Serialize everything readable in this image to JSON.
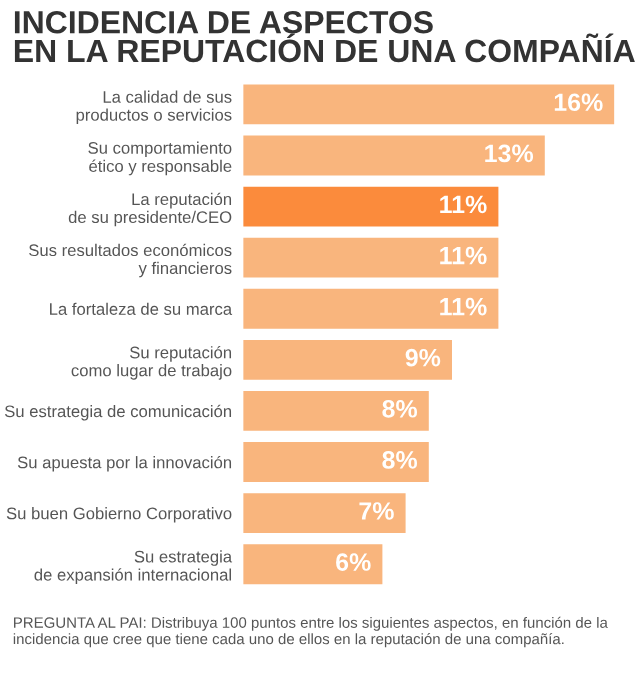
{
  "chart_data": {
    "type": "bar",
    "orientation": "horizontal",
    "title": "INCIDENCIA DE ASPECTOS\nEN LA REPUTACIÓN DE UNA COMPAÑÍA",
    "categories": [
      "La calidad de sus\nproductos o servicios",
      "Su comportamiento\nético y responsable",
      "La reputación\nde su presidente/CEO",
      "Sus resultados económicos\ny financieros",
      "La fortaleza de su marca",
      "Su reputación\ncomo lugar de trabajo",
      "Su estrategia de comunicación",
      "Su apuesta por la innovación",
      "Su buen Gobierno Corporativo",
      "Su estrategia\nde expansión internacional"
    ],
    "values": [
      16,
      13,
      11,
      11,
      11,
      9,
      8,
      8,
      7,
      6
    ],
    "value_labels": [
      "16%",
      "13%",
      "11%",
      "11%",
      "11%",
      "9%",
      "8%",
      "8%",
      "7%",
      "6%"
    ],
    "colors": [
      "#f9b57d",
      "#f9b57d",
      "#fb8b3c",
      "#f9b57d",
      "#f9b57d",
      "#f9b57d",
      "#f9b57d",
      "#f9b57d",
      "#f9b57d",
      "#f9b57d"
    ],
    "xlim": [
      0,
      16
    ],
    "tick_labels": "y",
    "grid": false,
    "legend": false,
    "annotations": [
      "PREGUNTA AL PAI: Distribuya 100 puntos entre los siguientes aspectos, en función de la incidencia que cree que tiene cada uno de ellos en la reputación de una compañía."
    ]
  }
}
